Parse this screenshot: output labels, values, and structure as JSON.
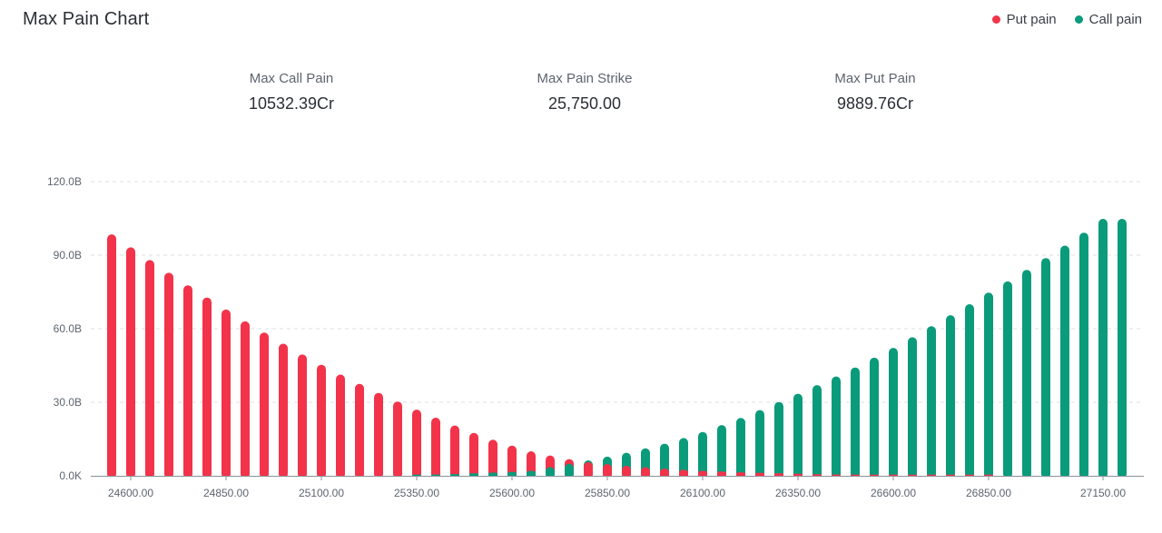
{
  "header": {
    "title": "Max Pain Chart"
  },
  "legend": {
    "items": [
      {
        "label": "Put pain",
        "color": "#f2334a"
      },
      {
        "label": "Call pain",
        "color": "#0a9b7b"
      }
    ]
  },
  "stats": {
    "max_call_pain": {
      "label": "Max Call Pain",
      "value": "10532.39Cr"
    },
    "max_pain_strike": {
      "label": "Max Pain Strike",
      "value": "25,750.00"
    },
    "max_put_pain": {
      "label": "Max Put Pain",
      "value": "9889.76Cr"
    }
  },
  "chart_data": {
    "type": "bar",
    "stacked": false,
    "x_start": 24550,
    "x_step": 50,
    "x_tick_labels": [
      "24600.00",
      "24850.00",
      "25100.00",
      "25350.00",
      "25600.00",
      "25850.00",
      "26100.00",
      "26350.00",
      "26600.00",
      "26850.00",
      "27150.00"
    ],
    "x_tick_values": [
      24600,
      24850,
      25100,
      25350,
      25600,
      25850,
      26100,
      26350,
      26600,
      26850,
      27150
    ],
    "y_tick_labels": [
      "0.0K",
      "30.0B",
      "60.0B",
      "90.0B",
      "120.0B"
    ],
    "y_tick_values": [
      0,
      30,
      60,
      90,
      120
    ],
    "ylim": [
      0,
      120
    ],
    "y_unit": "B",
    "grid": true,
    "legend_position": "top-right",
    "series": [
      {
        "name": "Put pain",
        "color": "#f2334a",
        "values": [
          98.5,
          93.2,
          88.0,
          82.8,
          77.7,
          72.7,
          67.8,
          63.0,
          58.4,
          53.9,
          49.5,
          45.3,
          41.3,
          37.5,
          33.8,
          30.3,
          27.0,
          23.7,
          20.5,
          17.5,
          14.7,
          12.3,
          10.0,
          8.3,
          6.8,
          5.6,
          4.8,
          4.1,
          3.5,
          2.9,
          2.4,
          2.0,
          1.7,
          1.4,
          1.2,
          1.0,
          0.8,
          0.6,
          0.5,
          0.4,
          0.3,
          0.2,
          0.2,
          0.1,
          0.1,
          0.1,
          0.1,
          0.0,
          0.0,
          0.0,
          0.0,
          0.0,
          0.0,
          0.0
        ]
      },
      {
        "name": "Call pain",
        "color": "#0a9b7b",
        "values": [
          0.0,
          0.0,
          0.0,
          0.0,
          0.0,
          0.0,
          0.0,
          0.0,
          0.0,
          0.0,
          0.0,
          0.0,
          0.0,
          0.0,
          0.0,
          0.0,
          0.2,
          0.5,
          0.7,
          1.0,
          1.3,
          1.6,
          2.0,
          3.5,
          4.9,
          6.3,
          7.8,
          9.4,
          11.2,
          13.1,
          15.4,
          17.9,
          20.7,
          23.6,
          26.8,
          30.1,
          33.5,
          37.0,
          40.5,
          44.2,
          48.2,
          52.2,
          56.5,
          61.0,
          65.5,
          70.0,
          74.7,
          79.3,
          84.0,
          88.8,
          93.9,
          99.2,
          104.8,
          104.8
        ]
      }
    ]
  }
}
